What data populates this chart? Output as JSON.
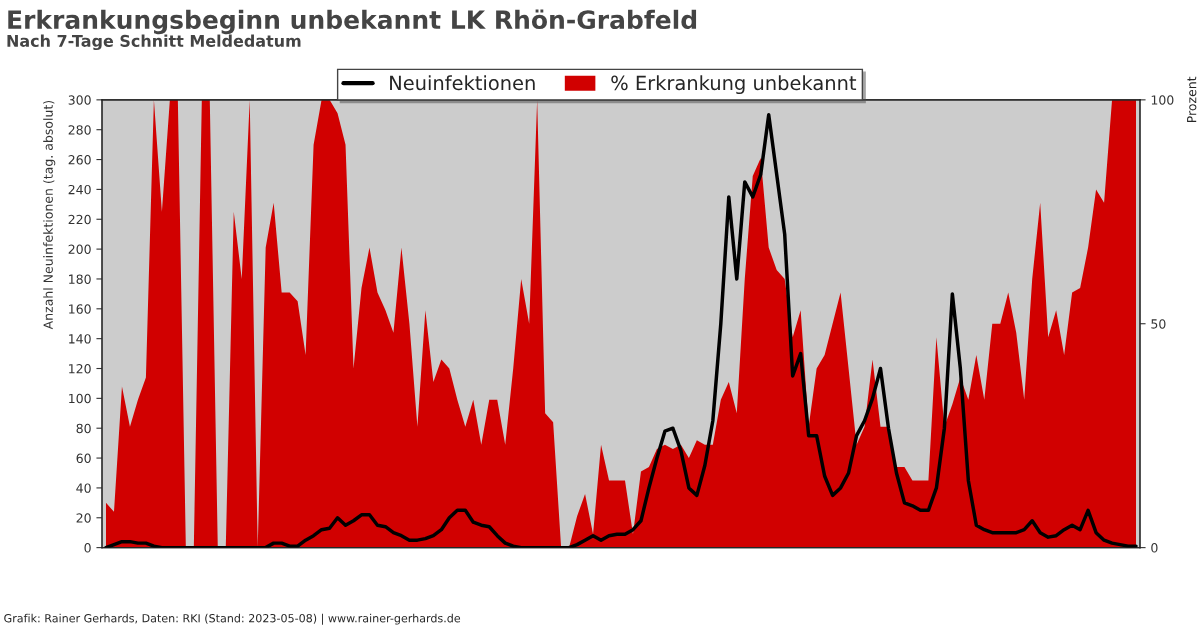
{
  "chart_data": {
    "type": "line",
    "title": "Erkrankungsbeginn unbekannt LK Rhön-Grabfeld",
    "subtitle": "Nach 7-Tage Schnitt Meldedatum",
    "ylabel": "Anzahl Neuinfektionen (tag. absolut)",
    "y2label": "Prozent",
    "annotations": [
      "Grafik: Rainer Gerhards, Daten: RKI (Stand: 2023-05-08) | www.rainer-gerhards.de"
    ],
    "categories": [
      null,
      null,
      null,
      null,
      null,
      null,
      null,
      null,
      null,
      null,
      null,
      null,
      null,
      null,
      null,
      null,
      null,
      null,
      null,
      null,
      null,
      null,
      null,
      null,
      null,
      null,
      null,
      null,
      null,
      null,
      null,
      null,
      null,
      null,
      null,
      null,
      null,
      null,
      null,
      null,
      null,
      null,
      null,
      null,
      null,
      null,
      null,
      null,
      null,
      null,
      null,
      null,
      null,
      null,
      null,
      null,
      null,
      null,
      null,
      null,
      null,
      null,
      null,
      null,
      null,
      null,
      null,
      null,
      null,
      null,
      null,
      null,
      null,
      null,
      null,
      null,
      null,
      null,
      null,
      null,
      null,
      null,
      null,
      null,
      null,
      null,
      null,
      null,
      null,
      null,
      null,
      null,
      null,
      null,
      null,
      null,
      null,
      null,
      null,
      null,
      null,
      null,
      null,
      null,
      null,
      null,
      null,
      null,
      null,
      null,
      null,
      null,
      null,
      null,
      null,
      null,
      null,
      null,
      null,
      null,
      null,
      null,
      null,
      null,
      null,
      null,
      null,
      null,
      null,
      null
    ],
    "series": [
      {
        "name": "% Erkrankung unbekannt",
        "type": "area",
        "axis": "y2",
        "color": "#d10000",
        "values": [
          10,
          8,
          36,
          27,
          33,
          38,
          100,
          75,
          100,
          100,
          0,
          0,
          100,
          100,
          0,
          0,
          75,
          60,
          100,
          0,
          67,
          77,
          57,
          57,
          55,
          43,
          90,
          100,
          100,
          97,
          90,
          40,
          58,
          67,
          57,
          53,
          48,
          67,
          50,
          27,
          53,
          37,
          42,
          40,
          33,
          27,
          33,
          23,
          33,
          33,
          23,
          40,
          60,
          50,
          100,
          30,
          28,
          0,
          0,
          7,
          12,
          3,
          23,
          15,
          15,
          15,
          3,
          17,
          18,
          22,
          23,
          22,
          23,
          20,
          24,
          23,
          23,
          33,
          37,
          30,
          60,
          83,
          87,
          67,
          62,
          60,
          47,
          53,
          27,
          40,
          43,
          50,
          57,
          40,
          23,
          27,
          42,
          27,
          27,
          18,
          18,
          15,
          15,
          15,
          47,
          27,
          32,
          38,
          33,
          43,
          33,
          50,
          50,
          57,
          48,
          33,
          60,
          77,
          47,
          53,
          43,
          57,
          58,
          67,
          80,
          77,
          100,
          100,
          100,
          100
        ]
      },
      {
        "name": "Neuinfektionen",
        "axis": "y",
        "color": "#000000",
        "values": [
          0,
          2,
          4,
          4,
          3,
          3,
          1,
          0,
          0,
          0,
          0,
          0,
          0,
          0,
          0,
          0,
          0,
          0,
          0,
          0,
          0,
          3,
          3,
          1,
          1,
          5,
          8,
          12,
          13,
          20,
          15,
          18,
          22,
          22,
          15,
          14,
          10,
          8,
          5,
          5,
          6,
          8,
          12,
          20,
          25,
          25,
          17,
          15,
          14,
          8,
          3,
          1,
          0,
          0,
          0,
          0,
          0,
          0,
          0,
          2,
          5,
          8,
          5,
          8,
          9,
          9,
          12,
          18,
          40,
          60,
          78,
          80,
          65,
          40,
          35,
          55,
          85,
          150,
          235,
          180,
          245,
          235,
          250,
          290,
          250,
          210,
          115,
          130,
          75,
          75,
          48,
          35,
          40,
          50,
          75,
          85,
          100,
          120,
          80,
          50,
          30,
          28,
          25,
          25,
          40,
          80,
          170,
          120,
          45,
          15,
          12,
          10,
          10,
          10,
          10,
          12,
          18,
          10,
          7,
          8,
          12,
          15,
          12,
          25,
          10,
          5,
          3,
          2,
          1,
          1
        ]
      }
    ],
    "ylim": [
      0,
      300
    ],
    "yticks": [
      0,
      20,
      40,
      60,
      80,
      100,
      120,
      140,
      160,
      180,
      200,
      220,
      240,
      260,
      280,
      300
    ],
    "y2lim": [
      0,
      100
    ],
    "y2ticks": [
      0,
      50,
      100
    ],
    "legend": "top",
    "grid": false
  }
}
